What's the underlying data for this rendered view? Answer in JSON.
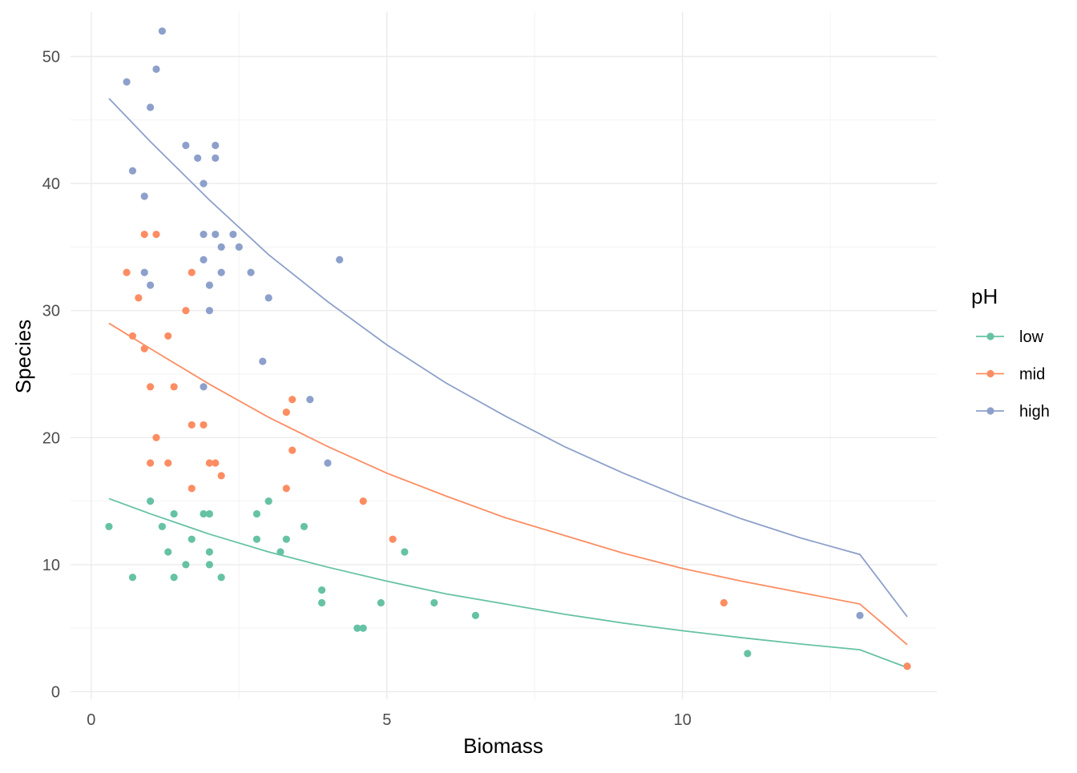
{
  "chart_data": {
    "type": "scatter",
    "title": "",
    "xlabel": "Biomass",
    "ylabel": "Species",
    "xlim": [
      -0.35,
      14.3
    ],
    "ylim": [
      -0.6,
      53.5
    ],
    "x_ticks": [
      0,
      5,
      10
    ],
    "x_tick_labels": [
      "0",
      "5",
      "10"
    ],
    "y_ticks": [
      0,
      10,
      20,
      30,
      40,
      50
    ],
    "y_tick_labels": [
      "0",
      "10",
      "20",
      "30",
      "40",
      "50"
    ],
    "grid": true,
    "legend": {
      "title": "pH",
      "position": "right",
      "items": [
        "low",
        "mid",
        "high"
      ]
    },
    "series": [
      {
        "name": "low",
        "color": "#66C2A5",
        "points": [
          [
            0.3,
            13
          ],
          [
            0.7,
            9
          ],
          [
            1.0,
            15
          ],
          [
            1.2,
            13
          ],
          [
            1.3,
            11
          ],
          [
            1.4,
            9
          ],
          [
            1.4,
            14
          ],
          [
            1.6,
            10
          ],
          [
            1.7,
            12
          ],
          [
            1.9,
            14
          ],
          [
            2.0,
            14
          ],
          [
            2.0,
            11
          ],
          [
            2.0,
            10
          ],
          [
            2.2,
            9
          ],
          [
            2.8,
            14
          ],
          [
            2.8,
            12
          ],
          [
            3.0,
            15
          ],
          [
            3.2,
            11
          ],
          [
            3.3,
            12
          ],
          [
            3.6,
            13
          ],
          [
            3.9,
            8
          ],
          [
            3.9,
            7
          ],
          [
            4.5,
            5
          ],
          [
            4.6,
            5
          ],
          [
            4.9,
            7
          ],
          [
            5.3,
            11
          ],
          [
            5.8,
            7
          ],
          [
            6.5,
            6
          ],
          [
            11.1,
            3
          ],
          [
            13.8,
            2
          ]
        ],
        "fit": [
          [
            0.3,
            15.2
          ],
          [
            1,
            14.0
          ],
          [
            2,
            12.4
          ],
          [
            3,
            11.0
          ],
          [
            4,
            9.8
          ],
          [
            5,
            8.7
          ],
          [
            6,
            7.7
          ],
          [
            7,
            6.9
          ],
          [
            8,
            6.1
          ],
          [
            9,
            5.4
          ],
          [
            10,
            4.8
          ],
          [
            11,
            4.25
          ],
          [
            12,
            3.75
          ],
          [
            13,
            3.3
          ],
          [
            13.8,
            1.9
          ]
        ]
      },
      {
        "name": "mid",
        "color": "#FC8D62",
        "points": [
          [
            0.6,
            33
          ],
          [
            0.7,
            28
          ],
          [
            0.8,
            31
          ],
          [
            0.9,
            36
          ],
          [
            0.9,
            27
          ],
          [
            1.0,
            24
          ],
          [
            1.0,
            18
          ],
          [
            1.1,
            36
          ],
          [
            1.1,
            20
          ],
          [
            1.3,
            28
          ],
          [
            1.3,
            18
          ],
          [
            1.4,
            24
          ],
          [
            1.6,
            30
          ],
          [
            1.7,
            33
          ],
          [
            1.7,
            21
          ],
          [
            1.7,
            16
          ],
          [
            1.9,
            21
          ],
          [
            2.0,
            18
          ],
          [
            2.1,
            18
          ],
          [
            2.2,
            17
          ],
          [
            3.3,
            22
          ],
          [
            3.3,
            16
          ],
          [
            3.4,
            23
          ],
          [
            3.4,
            19
          ],
          [
            4.6,
            15
          ],
          [
            5.1,
            12
          ],
          [
            10.7,
            7
          ],
          [
            13.8,
            2
          ]
        ],
        "fit": [
          [
            0.3,
            29.0
          ],
          [
            1,
            27.0
          ],
          [
            2,
            24.2
          ],
          [
            3,
            21.6
          ],
          [
            4,
            19.3
          ],
          [
            5,
            17.2
          ],
          [
            6,
            15.4
          ],
          [
            7,
            13.7
          ],
          [
            8,
            12.3
          ],
          [
            9,
            10.9
          ],
          [
            10,
            9.7
          ],
          [
            11,
            8.7
          ],
          [
            12,
            7.8
          ],
          [
            13,
            6.9
          ],
          [
            13.8,
            3.7
          ]
        ]
      },
      {
        "name": "high",
        "color": "#8DA0CB",
        "points": [
          [
            0.6,
            48
          ],
          [
            0.7,
            41
          ],
          [
            0.9,
            39
          ],
          [
            0.9,
            33
          ],
          [
            1.0,
            46
          ],
          [
            1.0,
            32
          ],
          [
            1.1,
            49
          ],
          [
            1.2,
            52
          ],
          [
            1.6,
            43
          ],
          [
            1.8,
            42
          ],
          [
            1.9,
            40
          ],
          [
            1.9,
            36
          ],
          [
            1.9,
            34
          ],
          [
            1.9,
            24
          ],
          [
            2.0,
            32
          ],
          [
            2.0,
            30
          ],
          [
            2.1,
            43
          ],
          [
            2.1,
            42
          ],
          [
            2.1,
            36
          ],
          [
            2.2,
            35
          ],
          [
            2.2,
            33
          ],
          [
            2.4,
            36
          ],
          [
            2.5,
            35
          ],
          [
            2.7,
            33
          ],
          [
            2.9,
            26
          ],
          [
            3.0,
            31
          ],
          [
            3.7,
            23
          ],
          [
            4.0,
            18
          ],
          [
            4.2,
            34
          ],
          [
            13.0,
            6
          ]
        ],
        "fit": [
          [
            0.3,
            46.7
          ],
          [
            1,
            43.3
          ],
          [
            2,
            38.7
          ],
          [
            3,
            34.4
          ],
          [
            4,
            30.7
          ],
          [
            5,
            27.3
          ],
          [
            6,
            24.3
          ],
          [
            7,
            21.7
          ],
          [
            8,
            19.3
          ],
          [
            9,
            17.2
          ],
          [
            10,
            15.3
          ],
          [
            11,
            13.6
          ],
          [
            12,
            12.1
          ],
          [
            13,
            10.8
          ],
          [
            13.8,
            5.9
          ]
        ]
      }
    ]
  }
}
